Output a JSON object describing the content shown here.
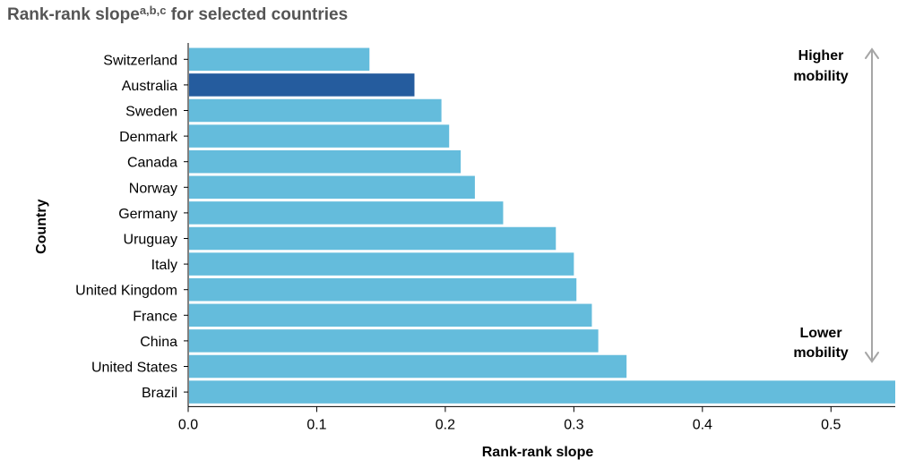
{
  "title": {
    "main": "Rank-rank slope",
    "superscript": "a,b,c",
    "suffix": " for selected countries"
  },
  "chart_data": {
    "type": "bar",
    "orientation": "horizontal",
    "categories": [
      "Switzerland",
      "Australia",
      "Sweden",
      "Denmark",
      "Canada",
      "Norway",
      "Germany",
      "Uruguay",
      "Italy",
      "United Kingdom",
      "France",
      "China",
      "United States",
      "Brazil"
    ],
    "values": [
      0.141,
      0.176,
      0.197,
      0.203,
      0.212,
      0.223,
      0.245,
      0.286,
      0.3,
      0.302,
      0.314,
      0.319,
      0.341,
      0.55
    ],
    "highlight": "Australia",
    "colors": {
      "bar": "#64bcdc",
      "highlight": "#255c9e",
      "arrow": "#a6a6a6"
    },
    "xlabel": "Rank-rank slope",
    "ylabel": "Country",
    "xlim": [
      0,
      0.55
    ],
    "xticks": [
      "0.0",
      "0.1",
      "0.2",
      "0.3",
      "0.4",
      "0.5"
    ],
    "grid": false,
    "legend": "none",
    "annotations": {
      "top": [
        "Higher",
        "mobility"
      ],
      "bottom": [
        "Lower",
        "mobility"
      ]
    }
  }
}
